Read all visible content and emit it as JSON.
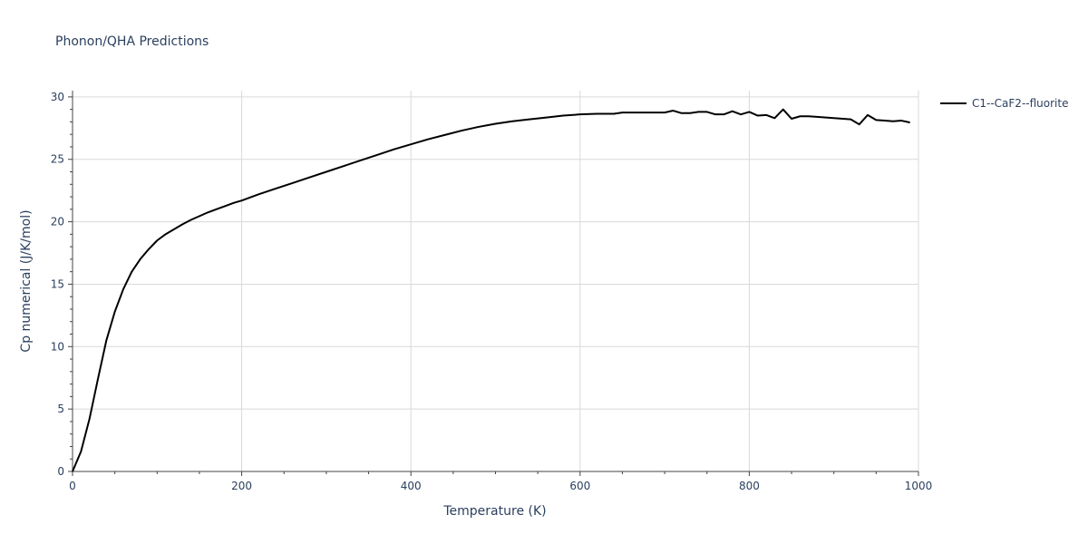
{
  "chart_data": {
    "type": "line",
    "title": "Phonon/QHA Predictions",
    "xlabel": "Temperature (K)",
    "ylabel": "Cp numerical (J/K/mol)",
    "xlim": [
      0,
      1000
    ],
    "ylim": [
      0,
      30.5
    ],
    "xticks": [
      0,
      200,
      400,
      600,
      800,
      1000
    ],
    "yticks": [
      0,
      5,
      10,
      15,
      20,
      25,
      30
    ],
    "grid": true,
    "legend_position": "top-right",
    "series": [
      {
        "name": "C1--CaF2--fluorite",
        "color": "#000000",
        "x": [
          0,
          10,
          20,
          30,
          40,
          50,
          60,
          70,
          80,
          90,
          100,
          110,
          120,
          130,
          140,
          150,
          160,
          170,
          180,
          190,
          200,
          220,
          240,
          260,
          280,
          300,
          320,
          340,
          360,
          380,
          400,
          420,
          440,
          460,
          480,
          500,
          520,
          540,
          560,
          580,
          600,
          620,
          640,
          650,
          660,
          680,
          700,
          710,
          720,
          730,
          740,
          750,
          760,
          770,
          780,
          790,
          800,
          810,
          820,
          830,
          840,
          850,
          860,
          870,
          880,
          900,
          920,
          930,
          940,
          950,
          960,
          970,
          980,
          990
        ],
        "y": [
          0,
          1.6,
          4.2,
          7.4,
          10.5,
          12.8,
          14.6,
          16.0,
          17.0,
          17.8,
          18.5,
          19.0,
          19.4,
          19.8,
          20.15,
          20.45,
          20.75,
          21.0,
          21.25,
          21.5,
          21.7,
          22.2,
          22.65,
          23.1,
          23.55,
          24.0,
          24.45,
          24.9,
          25.35,
          25.8,
          26.2,
          26.6,
          26.95,
          27.3,
          27.6,
          27.85,
          28.05,
          28.2,
          28.35,
          28.5,
          28.6,
          28.65,
          28.65,
          28.75,
          28.75,
          28.75,
          28.75,
          28.9,
          28.7,
          28.7,
          28.8,
          28.8,
          28.6,
          28.6,
          28.85,
          28.6,
          28.8,
          28.5,
          28.55,
          28.3,
          29.0,
          28.25,
          28.45,
          28.45,
          28.4,
          28.3,
          28.2,
          27.8,
          28.55,
          28.15,
          28.1,
          28.05,
          28.1,
          27.95
        ]
      }
    ]
  }
}
